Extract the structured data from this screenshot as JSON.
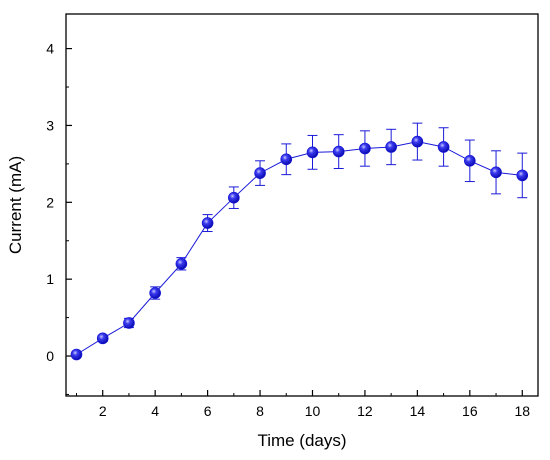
{
  "chart_data": {
    "type": "scatter",
    "title": "",
    "xlabel": "Time (days)",
    "ylabel": "Current (mA)",
    "xlim": [
      0.6,
      18.6
    ],
    "ylim": [
      -0.52,
      4.45
    ],
    "xticks": [
      2,
      4,
      6,
      8,
      10,
      12,
      14,
      16,
      18
    ],
    "xtick_labels": [
      "2",
      "4",
      "6",
      "8",
      "10",
      "12",
      "14",
      "16",
      "18"
    ],
    "yticks": [
      0,
      1,
      2,
      3,
      4
    ],
    "ytick_labels": [
      "0",
      "1",
      "2",
      "3",
      "4"
    ],
    "grid": false,
    "legend": "none",
    "series": [
      {
        "style": "line+markers with error bars",
        "color": "#1a1ad9",
        "marker_color": "#1212d6",
        "x": [
          1,
          2,
          3,
          4,
          5,
          6,
          7,
          8,
          9,
          10,
          11,
          12,
          13,
          14,
          15,
          16,
          17,
          18
        ],
        "y": [
          0.02,
          0.23,
          0.43,
          0.82,
          1.2,
          1.73,
          2.06,
          2.38,
          2.56,
          2.65,
          2.66,
          2.7,
          2.72,
          2.79,
          2.72,
          2.54,
          2.39,
          2.35
        ],
        "error": [
          0.02,
          0.04,
          0.06,
          0.08,
          0.08,
          0.11,
          0.14,
          0.16,
          0.2,
          0.22,
          0.22,
          0.23,
          0.23,
          0.24,
          0.25,
          0.27,
          0.28,
          0.29
        ]
      }
    ]
  }
}
